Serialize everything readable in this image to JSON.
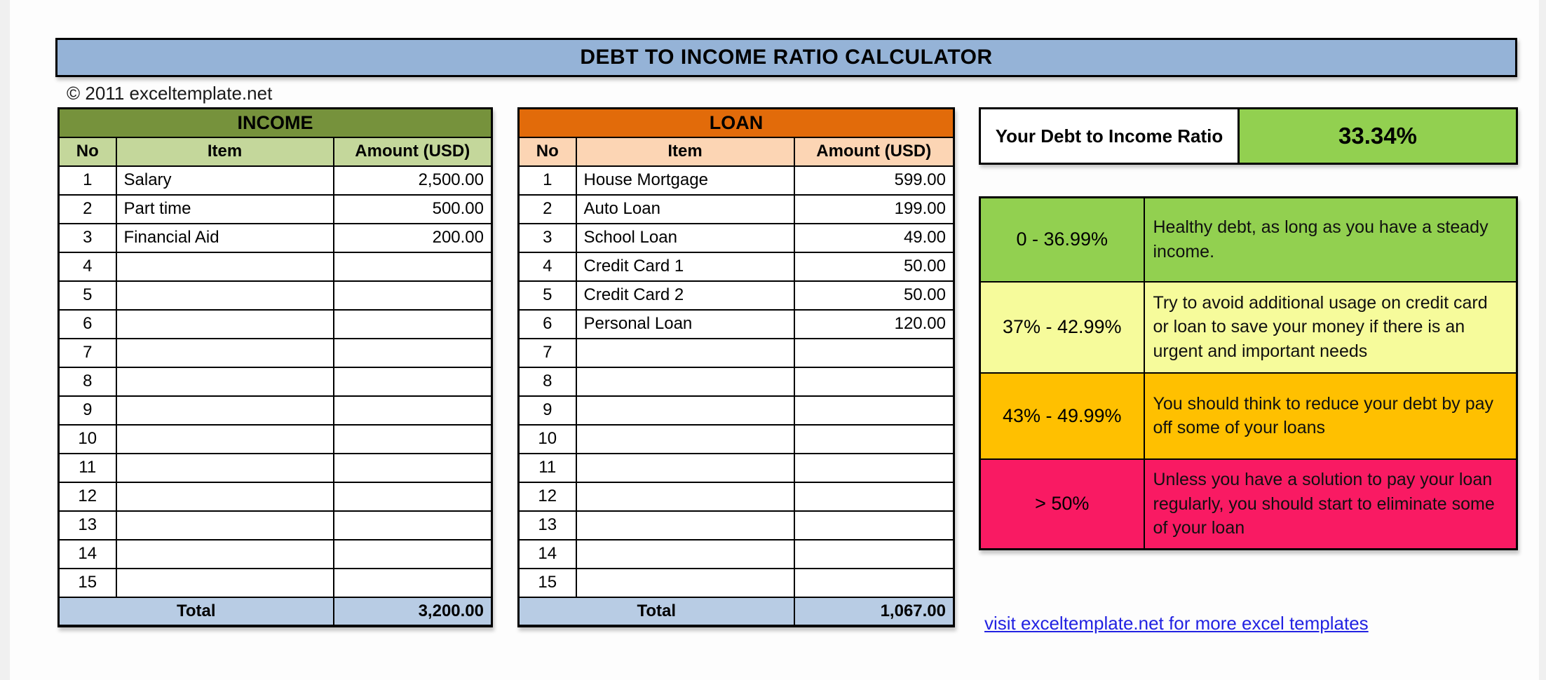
{
  "banner": {
    "title": "DEBT TO INCOME RATIO CALCULATOR"
  },
  "copyright": "© 2011 exceltemplate.net",
  "income_table": {
    "title": "INCOME",
    "columns": [
      "No",
      "Item",
      "Amount (USD)"
    ],
    "rows": [
      {
        "no": "1",
        "item": "Salary",
        "amount": "2,500.00"
      },
      {
        "no": "2",
        "item": "Part time",
        "amount": "500.00"
      },
      {
        "no": "3",
        "item": "Financial Aid",
        "amount": "200.00"
      },
      {
        "no": "4",
        "item": "",
        "amount": ""
      },
      {
        "no": "5",
        "item": "",
        "amount": ""
      },
      {
        "no": "6",
        "item": "",
        "amount": ""
      },
      {
        "no": "7",
        "item": "",
        "amount": ""
      },
      {
        "no": "8",
        "item": "",
        "amount": ""
      },
      {
        "no": "9",
        "item": "",
        "amount": ""
      },
      {
        "no": "10",
        "item": "",
        "amount": ""
      },
      {
        "no": "11",
        "item": "",
        "amount": ""
      },
      {
        "no": "12",
        "item": "",
        "amount": ""
      },
      {
        "no": "13",
        "item": "",
        "amount": ""
      },
      {
        "no": "14",
        "item": "",
        "amount": ""
      },
      {
        "no": "15",
        "item": "",
        "amount": ""
      }
    ],
    "total_label": "Total",
    "total_value": "3,200.00"
  },
  "loan_table": {
    "title": "LOAN",
    "columns": [
      "No",
      "Item",
      "Amount (USD)"
    ],
    "rows": [
      {
        "no": "1",
        "item": "House Mortgage",
        "amount": "599.00"
      },
      {
        "no": "2",
        "item": "Auto Loan",
        "amount": "199.00"
      },
      {
        "no": "3",
        "item": "School Loan",
        "amount": "49.00"
      },
      {
        "no": "4",
        "item": "Credit Card 1",
        "amount": "50.00"
      },
      {
        "no": "5",
        "item": "Credit Card 2",
        "amount": "50.00"
      },
      {
        "no": "6",
        "item": "Personal Loan",
        "amount": "120.00"
      },
      {
        "no": "7",
        "item": "",
        "amount": ""
      },
      {
        "no": "8",
        "item": "",
        "amount": ""
      },
      {
        "no": "9",
        "item": "",
        "amount": ""
      },
      {
        "no": "10",
        "item": "",
        "amount": ""
      },
      {
        "no": "11",
        "item": "",
        "amount": ""
      },
      {
        "no": "12",
        "item": "",
        "amount": ""
      },
      {
        "no": "13",
        "item": "",
        "amount": ""
      },
      {
        "no": "14",
        "item": "",
        "amount": ""
      },
      {
        "no": "15",
        "item": "",
        "amount": ""
      }
    ],
    "total_label": "Total",
    "total_value": "1,067.00"
  },
  "ratio": {
    "label": "Your Debt to Income Ratio",
    "value": "33.34%"
  },
  "legend": {
    "rows": [
      {
        "range": "0 - 36.99%",
        "description": "Healthy debt, as long as you have a steady income.",
        "color": "#92D050"
      },
      {
        "range": "37% - 42.99%",
        "description": "Try to avoid additional usage on credit card or loan to save your money if there is an urgent and important needs",
        "color": "#F6FB9B"
      },
      {
        "range": "43% - 49.99%",
        "description": "You should think to reduce your debt by pay off some of your loans",
        "color": "#FFC000"
      },
      {
        "range": "> 50%",
        "description": "Unless you have a solution to pay your loan regularly, you should start to eliminate some of your loan",
        "color": "#F91A63"
      }
    ]
  },
  "footer_link": "visit exceltemplate.net for more excel templates",
  "colors": {
    "banner_blue": "#95B3D7",
    "income_header": "#76923C",
    "income_subheader": "#C4D79B",
    "loan_header": "#E26B0A",
    "loan_subheader": "#FCD5B4",
    "total_blue": "#B8CCE4",
    "ratio_green": "#92D050",
    "link_blue": "#2222E2"
  }
}
